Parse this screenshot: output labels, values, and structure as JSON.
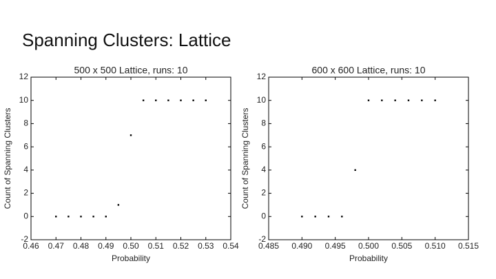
{
  "title": "Spanning Clusters: Lattice",
  "chart_data": [
    {
      "type": "scatter",
      "title": "500 x 500 Lattice, runs: 10",
      "xlabel": "Probability",
      "ylabel": "Count of Spanning Clusters",
      "x": [
        0.47,
        0.475,
        0.48,
        0.485,
        0.49,
        0.495,
        0.5,
        0.505,
        0.51,
        0.515,
        0.52,
        0.525,
        0.53
      ],
      "values": [
        0,
        0,
        0,
        0,
        0,
        1,
        7,
        10,
        10,
        10,
        10,
        10,
        10
      ],
      "color": "#000000",
      "xlim": [
        0.46,
        0.54
      ],
      "xticks": [
        0.46,
        0.47,
        0.48,
        0.49,
        {
          "value": 0.5,
          "label": "0.50"
        },
        0.51,
        0.52,
        0.53,
        0.54
      ],
      "ylim": [
        -2,
        12
      ],
      "yticks": [
        -2,
        0,
        2,
        4,
        6,
        8,
        10,
        12
      ],
      "grid": false
    },
    {
      "type": "scatter",
      "title": "600 x 600 Lattice, runs: 10",
      "xlabel": "Probability",
      "ylabel": "Count of Spanning Clusters",
      "x": [
        0.49,
        0.492,
        0.494,
        0.496,
        0.498,
        0.5,
        0.502,
        0.504,
        0.506,
        0.508,
        0.51
      ],
      "values": [
        0,
        0,
        0,
        0,
        4,
        10,
        10,
        10,
        10,
        10,
        10
      ],
      "color": "#000000",
      "xlim": [
        0.485,
        0.515
      ],
      "xticks": [
        0.485,
        {
          "value": 0.49,
          "label": "0.490"
        },
        0.495,
        {
          "value": 0.5,
          "label": "0.500"
        },
        0.505,
        {
          "value": 0.51,
          "label": "0.510"
        },
        0.515
      ],
      "ylim": [
        -2,
        12
      ],
      "yticks": [
        -2,
        0,
        2,
        4,
        6,
        8,
        10,
        12
      ],
      "grid": false
    }
  ]
}
